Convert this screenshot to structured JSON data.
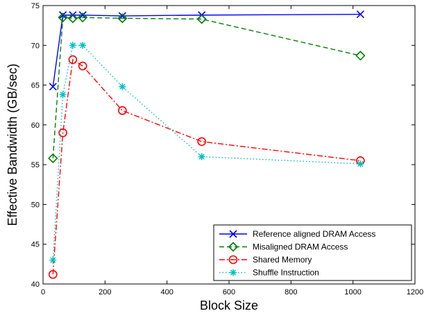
{
  "chart_data": {
    "type": "line",
    "xlabel": "Block Size",
    "ylabel": "Effective Bandwidth (GB/sec)",
    "xlim": [
      0,
      1200
    ],
    "ylim": [
      40,
      75
    ],
    "xticks": [
      0,
      200,
      400,
      600,
      800,
      1000,
      1200
    ],
    "yticks": [
      40,
      45,
      50,
      55,
      60,
      65,
      70,
      75
    ],
    "grid": false,
    "legend_position": "bottom-right",
    "series": [
      {
        "name": "Reference aligned DRAM Access",
        "color": "#0000ff",
        "line_style": "solid",
        "marker": "x",
        "x": [
          32,
          64,
          96,
          128,
          256,
          512,
          1024
        ],
        "y": [
          64.8,
          73.8,
          73.8,
          73.8,
          73.7,
          73.8,
          73.9
        ]
      },
      {
        "name": "Misaligned DRAM Access",
        "color": "#008000",
        "line_style": "dashed",
        "marker": "diamond",
        "x": [
          32,
          64,
          96,
          128,
          256,
          512,
          1024
        ],
        "y": [
          55.8,
          73.5,
          73.4,
          73.5,
          73.4,
          73.3,
          68.7
        ]
      },
      {
        "name": "Shared Memory",
        "color": "#ff0000",
        "line_style": "dashdot",
        "marker": "circle",
        "x": [
          32,
          64,
          96,
          128,
          256,
          512,
          1024
        ],
        "y": [
          41.2,
          59.0,
          68.2,
          67.4,
          61.8,
          57.9,
          55.5
        ]
      },
      {
        "name": "Shuffle Instruction",
        "color": "#00bfbf",
        "line_style": "dotted",
        "marker": "asterisk",
        "x": [
          32,
          64,
          96,
          128,
          256,
          512,
          1024
        ],
        "y": [
          43.0,
          63.8,
          70.0,
          70.0,
          64.8,
          56.0,
          55.1
        ]
      }
    ]
  }
}
